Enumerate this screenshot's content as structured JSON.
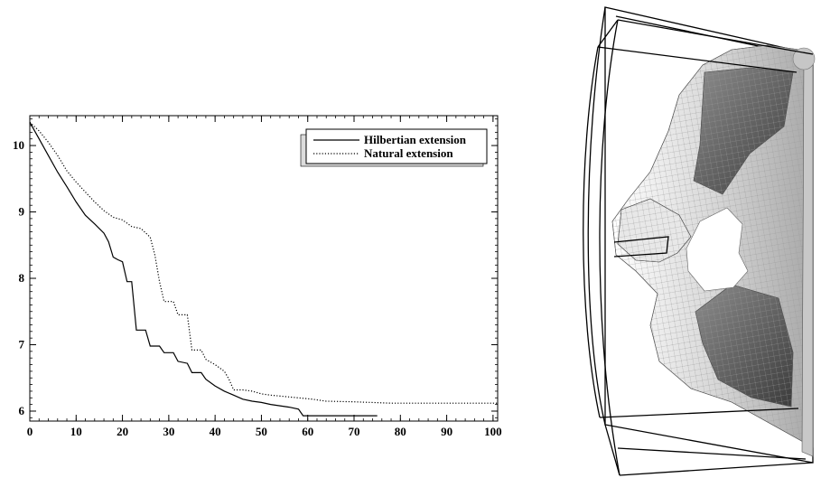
{
  "chart_data": {
    "type": "line",
    "title": "",
    "xlabel": "",
    "ylabel": "",
    "xlim": [
      0,
      101
    ],
    "ylim": [
      5.85,
      10.45
    ],
    "x_ticks": [
      0,
      10,
      20,
      30,
      40,
      50,
      60,
      70,
      80,
      90,
      100
    ],
    "y_ticks": [
      6,
      7,
      8,
      9,
      10
    ],
    "grid": false,
    "legend_position": "top-right",
    "series": [
      {
        "name": "Hilbertian extension",
        "style": "solid",
        "color": "#000000",
        "points": [
          [
            0,
            10.35
          ],
          [
            2,
            10.1
          ],
          [
            4,
            9.85
          ],
          [
            6,
            9.6
          ],
          [
            8,
            9.38
          ],
          [
            10,
            9.15
          ],
          [
            12,
            8.95
          ],
          [
            14,
            8.82
          ],
          [
            16,
            8.68
          ],
          [
            17,
            8.55
          ],
          [
            18,
            8.32
          ],
          [
            19,
            8.28
          ],
          [
            20,
            8.25
          ],
          [
            21,
            7.95
          ],
          [
            22,
            7.95
          ],
          [
            23,
            7.22
          ],
          [
            25,
            7.22
          ],
          [
            26,
            6.98
          ],
          [
            28,
            6.98
          ],
          [
            29,
            6.88
          ],
          [
            31,
            6.88
          ],
          [
            32,
            6.75
          ],
          [
            34,
            6.72
          ],
          [
            35,
            6.58
          ],
          [
            37,
            6.58
          ],
          [
            38,
            6.48
          ],
          [
            40,
            6.38
          ],
          [
            42,
            6.3
          ],
          [
            44,
            6.24
          ],
          [
            46,
            6.18
          ],
          [
            48,
            6.15
          ],
          [
            50,
            6.13
          ],
          [
            52,
            6.1
          ],
          [
            54,
            6.08
          ],
          [
            56,
            6.06
          ],
          [
            58,
            6.03
          ],
          [
            59,
            5.93
          ],
          [
            61,
            5.93
          ],
          [
            75,
            5.93
          ]
        ]
      },
      {
        "name": "Natural extension",
        "style": "dotted",
        "color": "#000000",
        "points": [
          [
            0,
            10.35
          ],
          [
            2,
            10.22
          ],
          [
            4,
            10.05
          ],
          [
            6,
            9.85
          ],
          [
            8,
            9.62
          ],
          [
            10,
            9.45
          ],
          [
            12,
            9.3
          ],
          [
            14,
            9.15
          ],
          [
            16,
            9.02
          ],
          [
            18,
            8.92
          ],
          [
            20,
            8.88
          ],
          [
            22,
            8.78
          ],
          [
            24,
            8.75
          ],
          [
            26,
            8.62
          ],
          [
            27,
            8.35
          ],
          [
            28,
            7.95
          ],
          [
            29,
            7.65
          ],
          [
            31,
            7.65
          ],
          [
            32,
            7.45
          ],
          [
            34,
            7.45
          ],
          [
            35,
            6.92
          ],
          [
            37,
            6.92
          ],
          [
            38,
            6.78
          ],
          [
            40,
            6.7
          ],
          [
            42,
            6.6
          ],
          [
            43,
            6.48
          ],
          [
            44,
            6.32
          ],
          [
            46,
            6.32
          ],
          [
            48,
            6.3
          ],
          [
            50,
            6.26
          ],
          [
            52,
            6.24
          ],
          [
            55,
            6.22
          ],
          [
            58,
            6.2
          ],
          [
            61,
            6.18
          ],
          [
            64,
            6.15
          ],
          [
            70,
            6.14
          ],
          [
            78,
            6.12
          ],
          [
            85,
            6.12
          ],
          [
            101,
            6.12
          ]
        ]
      }
    ]
  },
  "figure_right": {
    "shape_icon": "3d-mesh-render-icon",
    "colors": {
      "frame": "#000000",
      "mesh_light": "#f2f2f2",
      "mesh_mid": "#bdbdbd",
      "mesh_dark": "#555555"
    }
  }
}
